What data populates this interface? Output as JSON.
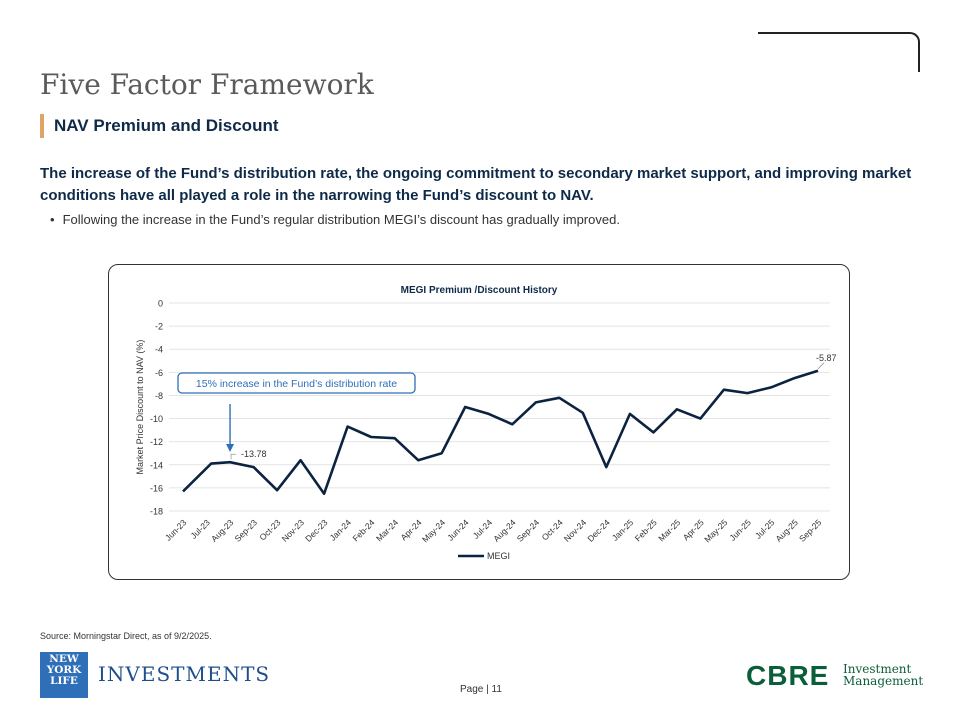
{
  "header": {
    "title": "Five Factor Framework",
    "subtitle": "NAV Premium and Discount"
  },
  "intro": {
    "lead": "The increase of the Fund’s distribution rate, the ongoing commitment to secondary market support, and improving market conditions have all played a role in the narrowing the Fund’s discount to NAV.",
    "bullet": "Following the increase in the Fund’s regular distribution MEGI’s discount has gradually improved."
  },
  "chart_data": {
    "type": "line",
    "title": "MEGI Premium  /Discount History",
    "xlabel": "",
    "ylabel": "Market Price Discount to NAV (%)",
    "ylim": [
      -18,
      0
    ],
    "yticks": [
      0,
      -2,
      -4,
      -6,
      -8,
      -10,
      -12,
      -14,
      -16,
      -18
    ],
    "categories": [
      "Jun-23",
      "Jul-23",
      "Aug-23",
      "Sep-23",
      "Oct-23",
      "Nov-23",
      "Dec-23",
      "Jan-24",
      "Feb-24",
      "Mar-24",
      "Apr-24",
      "May-24",
      "Jun-24",
      "Jul-24",
      "Aug-24",
      "Sep-24",
      "Oct-24",
      "Nov-24",
      "Dec-24",
      "Jan-25",
      "Feb-25",
      "Mar-25",
      "Apr-25",
      "May-25",
      "Jun-25",
      "Jul-25",
      "Aug-25",
      "Sep-25"
    ],
    "series": [
      {
        "name": "MEGI",
        "color": "#0c2340",
        "points": [
          [
            0,
            -16.3
          ],
          [
            1.2,
            -13.9
          ],
          [
            2,
            -13.78
          ],
          [
            3,
            -14.2
          ],
          [
            4,
            -16.2
          ],
          [
            5,
            -13.6
          ],
          [
            6,
            -16.5
          ],
          [
            7,
            -10.7
          ],
          [
            8,
            -11.6
          ],
          [
            9,
            -11.7
          ],
          [
            10,
            -13.6
          ],
          [
            11,
            -13.0
          ],
          [
            12,
            -9.0
          ],
          [
            13,
            -9.6
          ],
          [
            14,
            -10.5
          ],
          [
            15,
            -8.6
          ],
          [
            16,
            -8.2
          ],
          [
            17,
            -9.5
          ],
          [
            18,
            -14.2
          ],
          [
            19,
            -9.6
          ],
          [
            20,
            -11.2
          ],
          [
            21,
            -9.2
          ],
          [
            22,
            -10.0
          ],
          [
            23,
            -7.5
          ],
          [
            24,
            -7.8
          ],
          [
            25,
            -7.3
          ],
          [
            26,
            -6.5
          ],
          [
            27,
            -5.87
          ]
        ]
      }
    ],
    "data_labels": [
      {
        "text": "-13.78",
        "index": 2,
        "value": -13.78
      },
      {
        "text": "-5.87",
        "index": 27,
        "value": -5.87
      }
    ],
    "annotation": {
      "text": "15% increase in the Fund’s distribution rate",
      "target_index": 2,
      "color": "#2f6fb8"
    },
    "legend": {
      "position": "bottom",
      "entries": [
        "MEGI"
      ]
    }
  },
  "footer": {
    "source": "Source: Morningstar Direct, as of 9/2/2025.",
    "page": "Page | 11",
    "nyl_logo_lines": [
      "NEW",
      "YORK",
      "LIFE"
    ],
    "nyl_text": "INVESTMENTS",
    "cbre": "CBRE",
    "cbre_sub_1": "Investment",
    "cbre_sub_2": "Management"
  }
}
